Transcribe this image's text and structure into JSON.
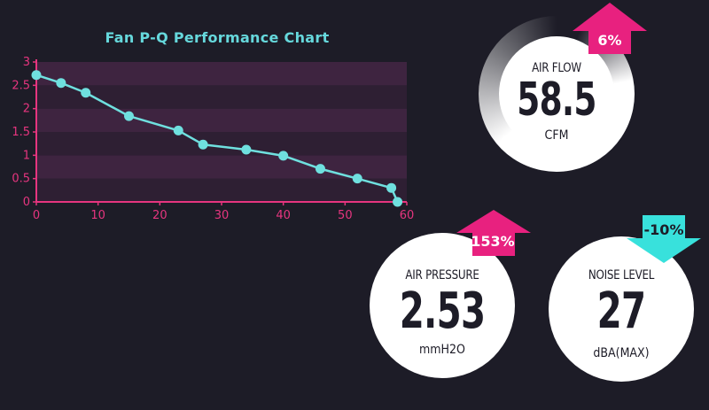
{
  "chart_data": {
    "type": "line",
    "title": "Fan P-Q Performance Chart",
    "xlabel": "",
    "ylabel": "",
    "xlim": [
      0,
      60
    ],
    "ylim": [
      0,
      3
    ],
    "x_ticks": [
      "0",
      "10",
      "20",
      "30",
      "40",
      "50",
      "60"
    ],
    "y_ticks": [
      "0",
      "0.5",
      "1",
      "1.5",
      "2",
      "2.5",
      "3"
    ],
    "grid": "horizontal bands",
    "series": [
      {
        "x": [
          0,
          4,
          8,
          15,
          23,
          27,
          34,
          40,
          46,
          52,
          57.5,
          58.5
        ],
        "y": [
          2.72,
          2.55,
          2.34,
          1.84,
          1.53,
          1.23,
          1.12,
          0.99,
          0.71,
          0.5,
          0.3,
          0
        ],
        "color": "#6fe0df"
      }
    ],
    "colors": {
      "axis": "#e6357f",
      "band_dark": "#2e1f33",
      "band_light": "#3e2440",
      "line": "#6fe0df"
    }
  },
  "metrics": {
    "air_flow": {
      "label": "AIR FLOW",
      "value": "58.5",
      "unit": "CFM",
      "change": "6%",
      "direction": "up",
      "color": "#e8217f"
    },
    "air_pressure": {
      "label": "AIR PRESSURE",
      "value": "2.53",
      "unit": "mmH2O",
      "change": "153%",
      "direction": "up",
      "color": "#e8217f"
    },
    "noise_level": {
      "label": "NOISE LEVEL",
      "value": "27",
      "unit": "dBA(MAX)",
      "change": "-10%",
      "direction": "down",
      "color": "#38e1dc"
    }
  }
}
